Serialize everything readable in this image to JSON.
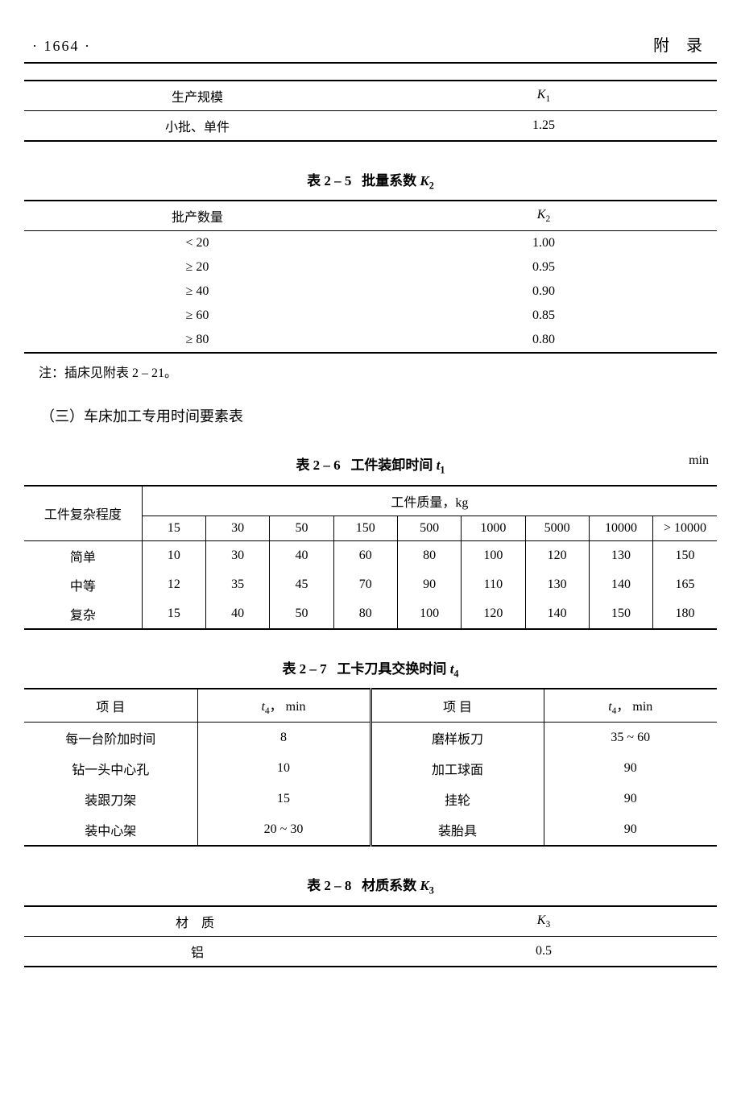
{
  "page": {
    "number": "·  1664  ·",
    "section": "附  录"
  },
  "table24tail": {
    "header": [
      "生产规模",
      "K₁"
    ],
    "row": [
      "小批、单件",
      "1.25"
    ]
  },
  "table25": {
    "caption_lead": "表 2 – 5",
    "caption_text": "批量系数",
    "caption_sym": "K",
    "caption_sub": "2",
    "header": [
      "批产数量",
      "K₂"
    ],
    "rows": [
      [
        "< 20",
        "1.00"
      ],
      [
        "≥ 20",
        "0.95"
      ],
      [
        "≥ 40",
        "0.90"
      ],
      [
        "≥ 60",
        "0.85"
      ],
      [
        "≥ 80",
        "0.80"
      ]
    ],
    "note": "注：插床见附表 2 – 21。"
  },
  "section3": "（三）车床加工专用时间要素表",
  "table26": {
    "caption_lead": "表 2 – 6",
    "caption_text": "工件装卸时间",
    "caption_sym": "t",
    "caption_sub": "1",
    "unit": "min",
    "row_header_label": "工件复杂程度",
    "mass_header": "工件质量，kg",
    "mass_cols": [
      "15",
      "30",
      "50",
      "150",
      "500",
      "1000",
      "5000",
      "10000",
      "> 10000"
    ],
    "rows": [
      {
        "label": "简单",
        "vals": [
          "10",
          "30",
          "40",
          "60",
          "80",
          "100",
          "120",
          "130",
          "150"
        ]
      },
      {
        "label": "中等",
        "vals": [
          "12",
          "35",
          "45",
          "70",
          "90",
          "110",
          "130",
          "140",
          "165"
        ]
      },
      {
        "label": "复杂",
        "vals": [
          "15",
          "40",
          "50",
          "80",
          "100",
          "120",
          "140",
          "150",
          "180"
        ]
      }
    ]
  },
  "table27": {
    "caption_lead": "表 2 – 7",
    "caption_text": "工卡刀具交换时间",
    "caption_sym": "t",
    "caption_sub": "4",
    "col_item": "项    目",
    "col_val_sym": "t",
    "col_val_sub": "4",
    "col_val_tail": "，  min",
    "rows": [
      [
        "每一台阶加时间",
        "8",
        "磨样板刀",
        "35 ~ 60"
      ],
      [
        "钻一头中心孔",
        "10",
        "加工球面",
        "90"
      ],
      [
        "装跟刀架",
        "15",
        "挂轮",
        "90"
      ],
      [
        "装中心架",
        "20 ~ 30",
        "装胎具",
        "90"
      ]
    ]
  },
  "table28": {
    "caption_lead": "表 2 – 8",
    "caption_text": "材质系数",
    "caption_sym": "K",
    "caption_sub": "3",
    "header": [
      "材    质",
      "K₃"
    ],
    "row": [
      "铝",
      "0.5"
    ]
  }
}
